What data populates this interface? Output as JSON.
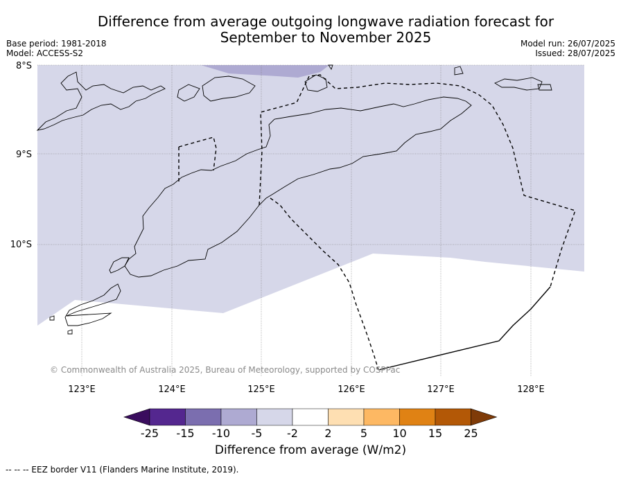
{
  "title": "Difference from average outgoing longwave radiation forecast for September to November 2025",
  "title_line1": "Difference from average outgoing longwave radiation forecast for",
  "title_line2": "September to November 2025",
  "meta_left": {
    "base_period": "Base period: 1981-2018",
    "model": "Model: ACCESS-S2"
  },
  "meta_right": {
    "model_run": "Model run: 26/07/2025",
    "issued": "Issued: 28/07/2025"
  },
  "map": {
    "lat_labels": [
      "8°S",
      "9°S",
      "10°S"
    ],
    "lon_labels": [
      "123°E",
      "124°E",
      "125°E",
      "126°E",
      "127°E",
      "128°E"
    ],
    "copyright": "© Commonwealth of Australia 2025, Bureau of Meteorology, supported by COSPPac",
    "colors": {
      "fill_-5_-2": "#d6d7e9",
      "fill_-10_-5": "#aeaad2",
      "coast": "#000000",
      "grid": "#555555"
    }
  },
  "colorbar": {
    "ticks": [
      "-25",
      "-15",
      "-10",
      "-5",
      "-2",
      "2",
      "5",
      "10",
      "15",
      "25"
    ],
    "colors": [
      "#3a0d5e",
      "#54278f",
      "#7b6eaf",
      "#aeaad2",
      "#d6d7e9",
      "#ffffff",
      "#fedfb2",
      "#fdb863",
      "#e08214",
      "#b35806",
      "#7f3b08"
    ],
    "label": "Difference from average (W/m2)"
  },
  "footer": "--  --  -- EEZ border V11 (Flanders Marine Institute, 2019)."
}
